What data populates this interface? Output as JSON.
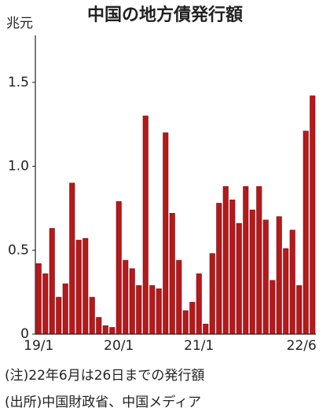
{
  "chart_data": {
    "type": "bar",
    "title": "中国の地方債発行額",
    "y_label": "兆元",
    "categories": [
      "19/1",
      null,
      null,
      null,
      null,
      null,
      null,
      null,
      null,
      null,
      null,
      null,
      "20/1",
      null,
      null,
      null,
      null,
      null,
      null,
      null,
      null,
      null,
      null,
      null,
      "21/1",
      null,
      null,
      null,
      null,
      null,
      null,
      null,
      null,
      null,
      null,
      null,
      null,
      null,
      null,
      null,
      null,
      "22/6"
    ],
    "values": [
      0.42,
      0.36,
      0.63,
      0.22,
      0.3,
      0.9,
      0.56,
      0.57,
      0.22,
      0.1,
      0.05,
      0.04,
      0.79,
      0.44,
      0.39,
      0.29,
      1.3,
      0.29,
      0.27,
      1.2,
      0.72,
      0.44,
      0.14,
      0.19,
      0.36,
      0.06,
      0.48,
      0.78,
      0.88,
      0.8,
      0.66,
      0.88,
      0.74,
      0.88,
      0.68,
      0.32,
      0.7,
      0.51,
      0.62,
      0.29,
      1.21,
      1.42
    ],
    "color": "#b5191b",
    "ylim": [
      0,
      1.78
    ],
    "yticks": [
      0,
      0.5,
      {
        "value": 1,
        "label": "1.0"
      },
      1.5
    ],
    "notes": [
      "(注)22年6月は26日までの発行額",
      "(出所)中国財政省、中国メディア"
    ]
  }
}
